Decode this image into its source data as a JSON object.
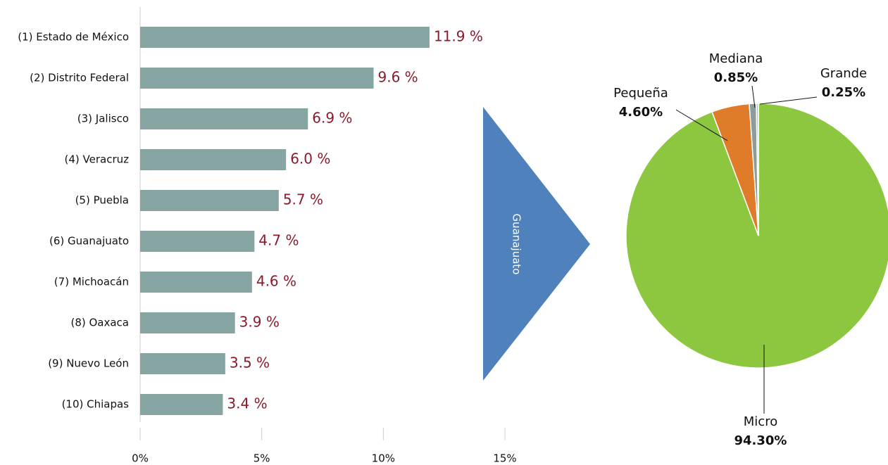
{
  "chart_data": [
    {
      "type": "bar",
      "orientation": "horizontal",
      "categories": [
        "(1) Estado de México",
        "(2) Distrito Federal",
        "(3) Jalisco",
        "(4) Veracruz",
        "(5) Puebla",
        "(6) Guanajuato",
        "(7) Michoacán",
        "(8) Oaxaca",
        "(9) Nuevo León",
        "(10) Chiapas"
      ],
      "values": [
        11.9,
        9.6,
        6.9,
        6.0,
        5.7,
        4.7,
        4.6,
        3.9,
        3.5,
        3.4
      ],
      "value_labels": [
        "11.9 %",
        "9.6 %",
        "6.9 %",
        "6.0 %",
        "5.7 %",
        "4.7 %",
        "4.6 %",
        "3.9 %",
        "3.5 %",
        "3.4 %"
      ],
      "color": "#86a5a2",
      "xlim": [
        0,
        15
      ],
      "xticks": [
        {
          "value": 0,
          "label": "0%"
        },
        {
          "value": 5,
          "label": "5%"
        },
        {
          "value": 10,
          "label": "10%"
        },
        {
          "value": 15,
          "label": "15%"
        }
      ]
    },
    {
      "type": "pie",
      "categories": [
        "Micro",
        "Pequeña",
        "Mediana",
        "Grande"
      ],
      "values": [
        94.3,
        4.6,
        0.85,
        0.25
      ],
      "value_labels": [
        "94.30%",
        "4.60%",
        "0.85%",
        "0.25%"
      ],
      "colors": [
        "#8dc63f",
        "#e07b29",
        "#8c9c9c",
        "#b3c2c2"
      ]
    }
  ],
  "arrow_label": "Guanajuato"
}
